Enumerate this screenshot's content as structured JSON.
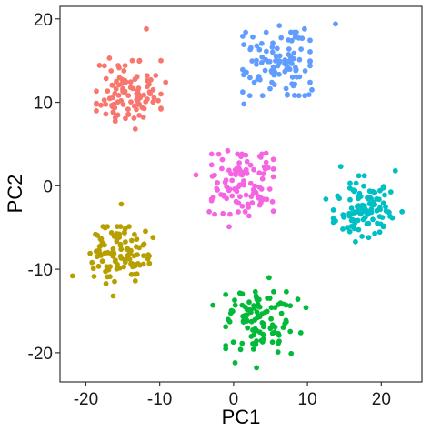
{
  "chart_data": {
    "type": "scatter",
    "title": "",
    "xlabel": "PC1",
    "ylabel": "PC2",
    "xlim": [
      -23.5,
      25.5
    ],
    "ylim": [
      -23.5,
      21.5
    ],
    "x_ticks": [
      -20,
      -10,
      0,
      10,
      20
    ],
    "y_ticks": [
      -20,
      -10,
      0,
      10,
      20
    ],
    "x_tick_labels": [
      "-20",
      "-10",
      "0",
      "10",
      "20"
    ],
    "y_tick_labels": [
      "-20",
      "-10",
      "0",
      "10",
      "20"
    ],
    "grid": false,
    "legend": "none",
    "series": [
      {
        "color": "#F8766D",
        "center": [
          -14.2,
          11.2
        ],
        "spread": [
          2.3,
          2.0
        ],
        "count": 100,
        "seed": 11,
        "points": [
          [
            -11.8,
            18.8
          ],
          [
            -16.8,
            15.3
          ],
          [
            -17.3,
            8.6
          ],
          [
            -13.3,
            6.8
          ],
          [
            -10.2,
            10.2
          ],
          [
            -11.2,
            12.7
          ],
          [
            -9.2,
            12.4
          ]
        ]
      },
      {
        "color": "#619CFF",
        "center": [
          5.8,
          14.6
        ],
        "spread": [
          2.4,
          2.0
        ],
        "count": 100,
        "seed": 22,
        "points": [
          [
            13.8,
            19.4
          ],
          [
            1.4,
            9.8
          ],
          [
            9.6,
            18.8
          ],
          [
            6.2,
            19.2
          ],
          [
            10.6,
            11.5
          ],
          [
            2.8,
            12.4
          ],
          [
            3.5,
            16.3
          ]
        ]
      },
      {
        "color": "#F564E3",
        "center": [
          1.2,
          0.2
        ],
        "spread": [
          2.2,
          1.9
        ],
        "count": 100,
        "seed": 33,
        "points": [
          [
            -5.1,
            1.3
          ],
          [
            -0.8,
            4.2
          ],
          [
            4.4,
            3.9
          ],
          [
            -0.6,
            -4.9
          ],
          [
            4.9,
            -0.4
          ],
          [
            -3.3,
            -3.1
          ],
          [
            2.1,
            -3.6
          ]
        ]
      },
      {
        "color": "#00BFC4",
        "center": [
          17.5,
          -2.6
        ],
        "spread": [
          2.1,
          2.0
        ],
        "count": 100,
        "seed": 44,
        "points": [
          [
            12.5,
            -1.6
          ],
          [
            14.5,
            2.3
          ],
          [
            21.9,
            1.8
          ],
          [
            22.8,
            -3.1
          ],
          [
            16.5,
            -6.7
          ],
          [
            18.3,
            -6.2
          ],
          [
            13.8,
            -4.2
          ]
        ]
      },
      {
        "color": "#B79F00",
        "center": [
          -15.6,
          -8.3
        ],
        "spread": [
          2.2,
          1.8
        ],
        "count": 100,
        "seed": 55,
        "points": [
          [
            -21.8,
            -10.8
          ],
          [
            -15.2,
            -2.2
          ],
          [
            -16.3,
            -13.2
          ],
          [
            -10.9,
            -6.2
          ],
          [
            -11.4,
            -9.3
          ],
          [
            -18.7,
            -5.8
          ],
          [
            -13.3,
            -11.4
          ]
        ]
      },
      {
        "color": "#00BA38",
        "center": [
          3.3,
          -16.3
        ],
        "spread": [
          2.3,
          1.9
        ],
        "count": 100,
        "seed": 66,
        "points": [
          [
            -2.8,
            -14.3
          ],
          [
            0.2,
            -21.2
          ],
          [
            3.1,
            -21.8
          ],
          [
            4.8,
            -11.0
          ],
          [
            7.8,
            -20.1
          ],
          [
            9.1,
            -17.6
          ],
          [
            8.7,
            -13.6
          ],
          [
            9.8,
            -14.6
          ]
        ]
      }
    ]
  }
}
